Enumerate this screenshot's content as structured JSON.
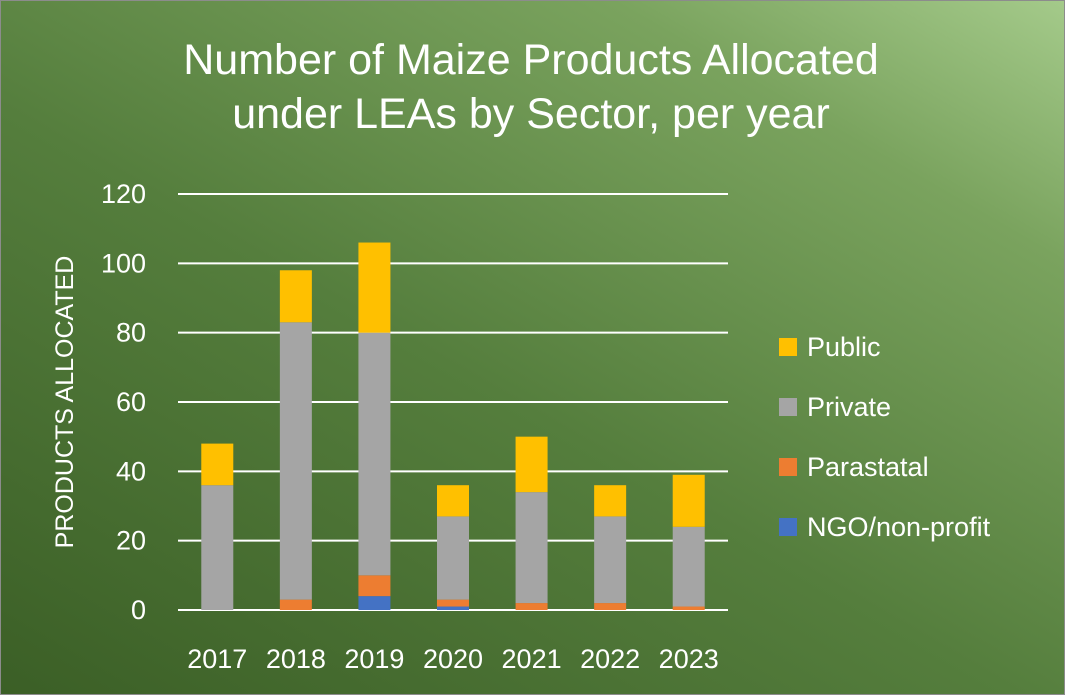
{
  "chart_data": {
    "type": "bar",
    "stacked": true,
    "title_lines": [
      "Number of Maize Products Allocated",
      "under LEAs by Sector, per year"
    ],
    "ylabel": "PRODUCTS ALLOCATED",
    "xlabel": "",
    "ylim": [
      0,
      120
    ],
    "yticks": [
      0,
      20,
      40,
      60,
      80,
      100,
      120
    ],
    "grid": true,
    "legend_position": "right",
    "categories": [
      "2017",
      "2018",
      "2019",
      "2020",
      "2021",
      "2022",
      "2023"
    ],
    "series": [
      {
        "name": "NGO/non-profit",
        "color": "#4472c4",
        "values": [
          0,
          0,
          4,
          1,
          0,
          0,
          0
        ]
      },
      {
        "name": "Parastatal",
        "color": "#ed7d31",
        "values": [
          0,
          3,
          6,
          2,
          2,
          2,
          1
        ]
      },
      {
        "name": "Private",
        "color": "#a5a5a5",
        "values": [
          36,
          80,
          70,
          24,
          32,
          25,
          23
        ]
      },
      {
        "name": "Public",
        "color": "#ffc000",
        "values": [
          12,
          15,
          26,
          9,
          16,
          9,
          15
        ]
      }
    ],
    "legend_order": [
      "Public",
      "Private",
      "Parastatal",
      "NGO/non-profit"
    ]
  }
}
